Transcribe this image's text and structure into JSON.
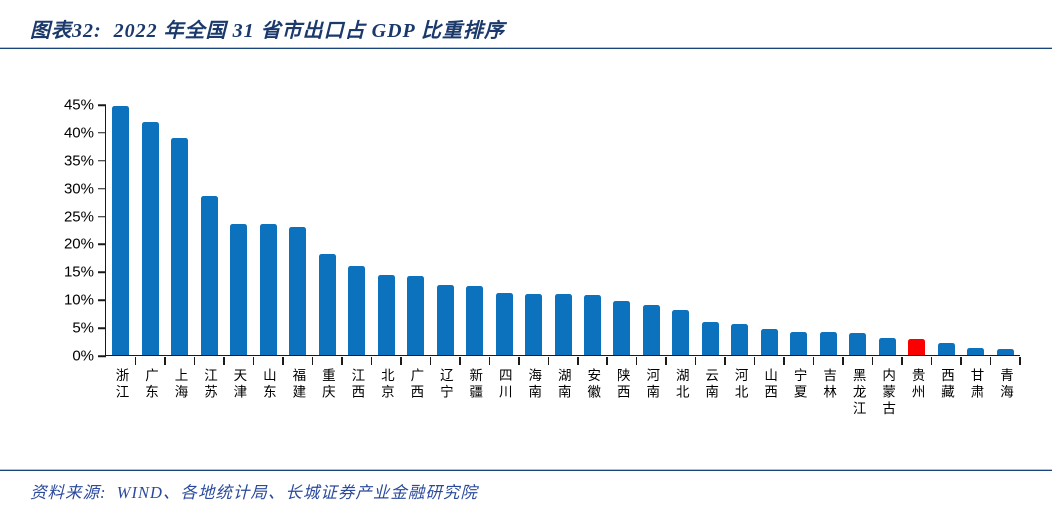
{
  "header": {
    "title": "图表32:  2022 年全国 31 省市出口占 GDP 比重排序"
  },
  "footer": {
    "source": "资料来源:  WIND、各地统计局、长城证券产业金融研究院"
  },
  "colors": {
    "bar": "#0d72bd",
    "highlight": "#fb0000",
    "title_text": "#1b3a6b",
    "source_text": "#2b4a9d",
    "divider": "#17457e",
    "axis": "#1a1a1a"
  },
  "chart_data": {
    "type": "bar",
    "title": "2022 年全国 31 省市出口占 GDP 比重排序",
    "categories": [
      "浙江",
      "广东",
      "上海",
      "江苏",
      "天津",
      "山东",
      "福建",
      "重庆",
      "江西",
      "北京",
      "广西",
      "辽宁",
      "新疆",
      "四川",
      "海南",
      "湖南",
      "安徽",
      "陕西",
      "河南",
      "湖北",
      "云南",
      "河北",
      "山西",
      "宁夏",
      "吉林",
      "黑龙江",
      "内蒙古",
      "贵州",
      "西藏",
      "甘肃",
      "青海"
    ],
    "values": [
      44.6,
      41.7,
      38.9,
      28.5,
      23.5,
      23.4,
      22.9,
      18.1,
      16.0,
      14.3,
      14.2,
      12.6,
      12.4,
      11.1,
      11.0,
      10.9,
      10.8,
      9.6,
      8.9,
      8.1,
      6.0,
      5.5,
      4.7,
      4.2,
      4.2,
      3.9,
      3.0,
      2.9,
      2.2,
      1.3,
      1.0
    ],
    "highlight_index": 27,
    "highlight_category": "贵州",
    "xlabel": "",
    "ylabel": "",
    "ylim": [
      0,
      45
    ],
    "yticks": [
      0,
      5,
      10,
      15,
      20,
      25,
      30,
      35,
      40,
      45
    ],
    "ytick_suffix": "%",
    "grid": false,
    "legend": null
  }
}
